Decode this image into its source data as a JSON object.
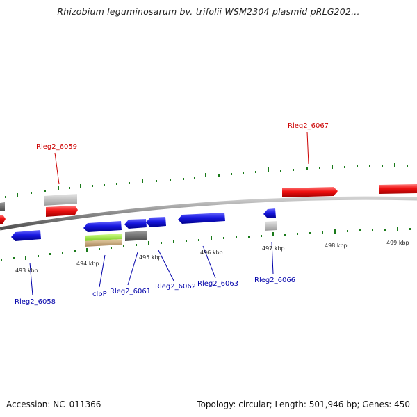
{
  "title": "Rhizobium leguminosarum bv. trifolii WSM2304 plasmid pRLG202...",
  "footer": {
    "accession": "Accession: NC_011366",
    "summary": "Topology: circular; Length: 501,946 bp; Genes: 450"
  },
  "colors": {
    "forward_gene": "#ff1a1a",
    "reverse_gene": "#1c1ce6",
    "forward_label": "#cc0000",
    "reverse_label": "#0000aa",
    "backbone": "#8c8c8c",
    "ticks": "#1a7a1a",
    "grey_feature": "#b8b8b8",
    "dark_feature": "#6e6e6e",
    "green_feature": "#9cf03a",
    "tan_feature": "#c8a878"
  },
  "scale_labels": [
    "493 kbp",
    "494 kbp",
    "495 kbp",
    "496 kbp",
    "497 kbp",
    "498 kbp",
    "499 kbp"
  ],
  "gene_labels_top": [
    "Rleg2_6059",
    "Rleg2_6067"
  ],
  "gene_labels_bottom": [
    "Rleg2_6058",
    "clpP",
    "Rleg2_6061",
    "Rleg2_6062",
    "Rleg2_6063",
    "Rleg2_6066"
  ]
}
